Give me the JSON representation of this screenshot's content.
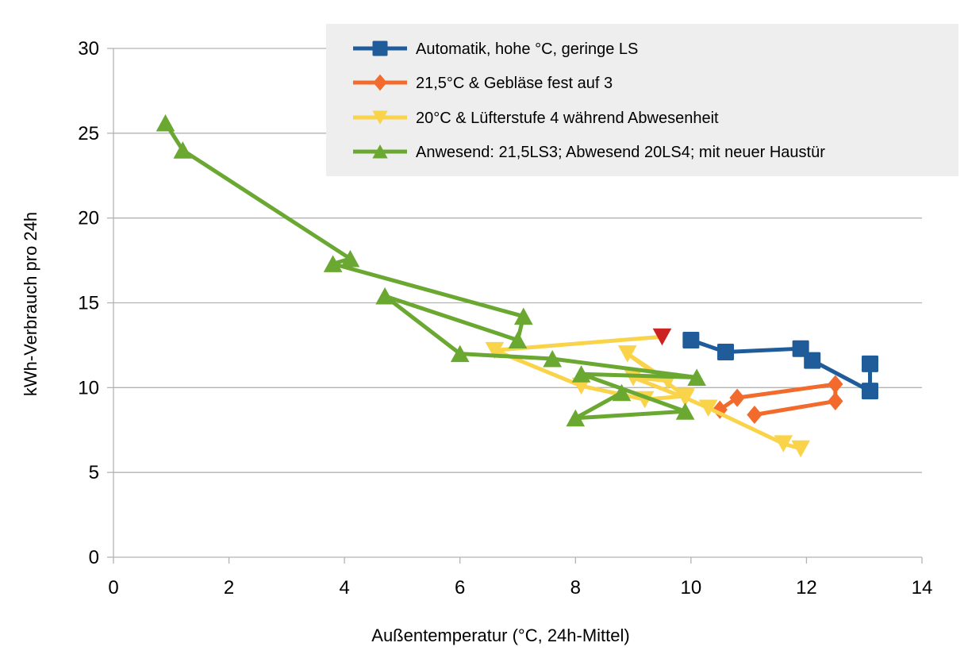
{
  "chart_data": {
    "type": "scatter",
    "xlabel": "Außentemperatur (°C, 24h-Mittel)",
    "ylabel": "kWh-Verbrauch pro 24h",
    "xlim": [
      0,
      14
    ],
    "ylim": [
      0,
      30
    ],
    "x_ticks": [
      0,
      2,
      4,
      6,
      8,
      10,
      12,
      14
    ],
    "y_ticks": [
      0,
      5,
      10,
      15,
      20,
      25,
      30
    ],
    "grid": "horizontal",
    "legend_position": "top-right",
    "series": [
      {
        "name": "Automatik, hohe °C, geringe LS",
        "color": "#1f5c99",
        "marker": "square",
        "x": [
          10.0,
          10.6,
          11.9,
          12.1,
          13.1,
          13.1
        ],
        "y": [
          12.8,
          12.1,
          12.3,
          11.6,
          9.8,
          11.4
        ]
      },
      {
        "name": "21,5°C & Gebläse fest auf 3",
        "color": "#f26a2c",
        "marker": "diamond",
        "x": [
          10.5,
          10.8,
          12.5,
          12.5,
          11.1
        ],
        "y": [
          8.7,
          9.4,
          10.2,
          9.2,
          8.4
        ]
      },
      {
        "name": "20°C & Lüfterstufe 4 während Abwesenheit",
        "color": "#f9d34a",
        "marker": "triangle-down",
        "x": [
          9.5,
          6.6,
          8.1,
          9.2,
          9.9,
          8.9,
          9.6,
          9.0,
          9.9,
          10.3,
          11.6,
          11.9
        ],
        "y": [
          13.0,
          12.2,
          10.1,
          9.3,
          9.5,
          12.0,
          10.4,
          10.6,
          9.4,
          8.8,
          6.7,
          6.4
        ],
        "highlight": {
          "index": 0,
          "color": "#cc2222"
        }
      },
      {
        "name": "Anwesend: 21,5LS3; Abwesend 20LS4; mit neuer Haustür",
        "color": "#6aa832",
        "marker": "triangle-up",
        "x": [
          0.9,
          1.2,
          4.1,
          3.8,
          7.1,
          7.0,
          4.7,
          6.0,
          7.6,
          10.1,
          8.1,
          9.9,
          8.0,
          8.8
        ],
        "y": [
          25.6,
          24.0,
          17.6,
          17.3,
          14.2,
          12.8,
          15.4,
          12.0,
          11.7,
          10.6,
          10.8,
          8.6,
          8.2,
          9.7
        ]
      }
    ]
  }
}
